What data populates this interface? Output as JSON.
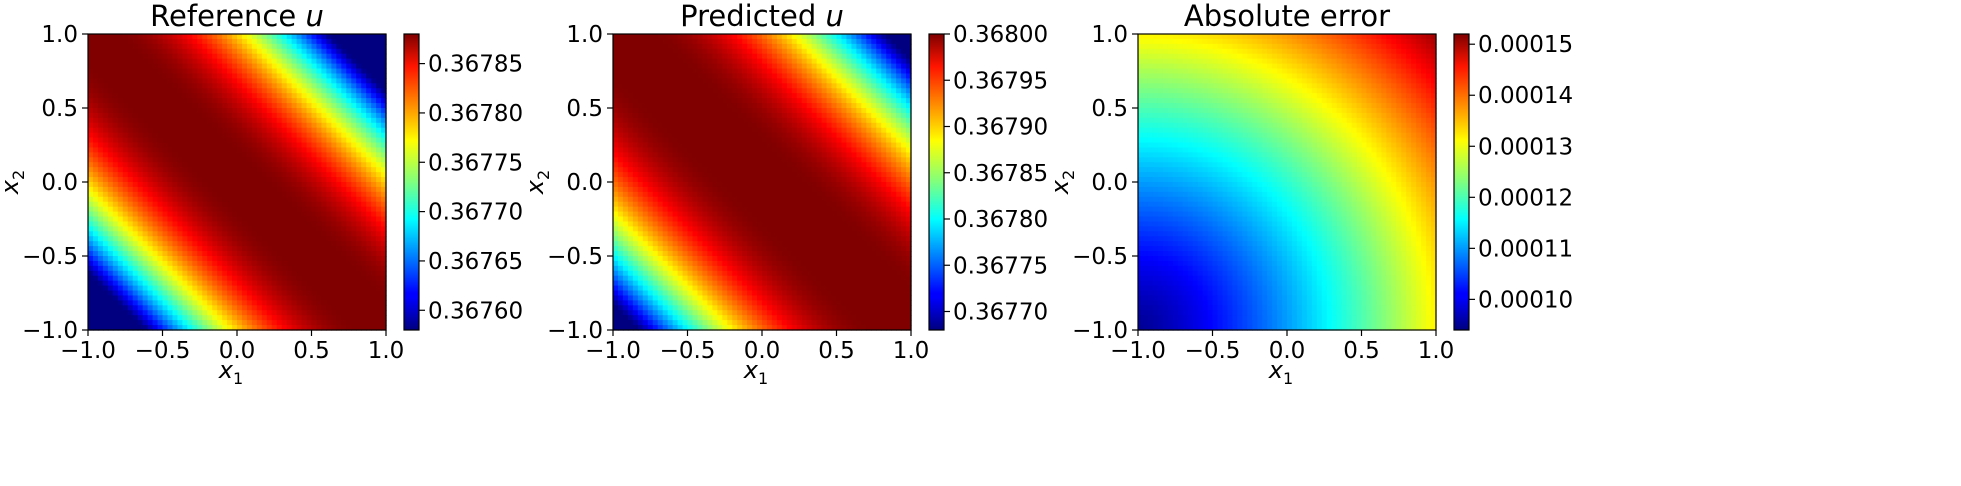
{
  "chart_data": [
    {
      "type": "heatmap",
      "title": "Reference",
      "title_var": "u",
      "xlabel": "x",
      "xlabel_sub": "1",
      "ylabel": "x",
      "ylabel_sub": "2",
      "xlim": [
        -1.0,
        1.0
      ],
      "ylim": [
        -1.0,
        1.0
      ],
      "x_ticks": [
        -1.0,
        -0.5,
        0.0,
        0.5,
        1.0
      ],
      "y_ticks": [
        -1.0,
        -0.5,
        0.0,
        0.5,
        1.0
      ],
      "x_tick_labels": [
        "−1.0",
        "−0.5",
        "0.0",
        "0.5",
        "1.0"
      ],
      "y_tick_labels": [
        "−1.0",
        "−0.5",
        "0.0",
        "0.5",
        "1.0"
      ],
      "colormap": "jet",
      "colorbar": {
        "range": [
          0.36758,
          0.36788
        ],
        "ticks": [
          0.3676,
          0.36765,
          0.3677,
          0.36775,
          0.3678,
          0.36785
        ],
        "tick_labels": [
          "0.36760",
          "0.36765",
          "0.36770",
          "0.36775",
          "0.36780",
          "0.36785"
        ]
      },
      "field": {
        "description": "maximum along the anti-diagonal x1 + x2 = 0, decreasing toward the corners (-1,-1) and (1,1)",
        "peak": 0.36788,
        "samples": [
          {
            "x1": -1.0,
            "x2": 1.0,
            "value": 0.36788
          },
          {
            "x1": 0.0,
            "x2": 0.0,
            "value": 0.36788
          },
          {
            "x1": -1.0,
            "x2": -1.0,
            "value": 0.36762
          },
          {
            "x1": 1.0,
            "x2": 1.0,
            "value": 0.36758
          },
          {
            "x1": 0.6,
            "x2": 0.6,
            "value": 0.36774
          }
        ]
      }
    },
    {
      "type": "heatmap",
      "title": "Predicted",
      "title_var": "u",
      "xlabel": "x",
      "xlabel_sub": "1",
      "ylabel": "x",
      "ylabel_sub": "2",
      "xlim": [
        -1.0,
        1.0
      ],
      "ylim": [
        -1.0,
        1.0
      ],
      "x_ticks": [
        -1.0,
        -0.5,
        0.0,
        0.5,
        1.0
      ],
      "y_ticks": [
        -1.0,
        -0.5,
        0.0,
        0.5,
        1.0
      ],
      "x_tick_labels": [
        "−1.0",
        "−0.5",
        "0.0",
        "0.5",
        "1.0"
      ],
      "y_tick_labels": [
        "−1.0",
        "−0.5",
        "0.0",
        "0.5",
        "1.0"
      ],
      "colormap": "jet",
      "colorbar": {
        "range": [
          0.36768,
          0.368
        ],
        "ticks": [
          0.3677,
          0.36775,
          0.3678,
          0.36785,
          0.3679,
          0.36795,
          0.368
        ],
        "tick_labels": [
          "0.36770",
          "0.36775",
          "0.36780",
          "0.36785",
          "0.36790",
          "0.36795",
          "0.36800"
        ]
      },
      "field": {
        "description": "maximum along the anti-diagonal x1 + x2 = 0, decreasing toward the corners (-1,-1) and (1,1)",
        "peak": 0.368,
        "samples": [
          {
            "x1": 0.0,
            "x2": 0.0,
            "value": 0.368
          },
          {
            "x1": -1.0,
            "x2": -1.0,
            "value": 0.3677
          },
          {
            "x1": 1.0,
            "x2": 1.0,
            "value": 0.36773
          }
        ]
      }
    },
    {
      "type": "heatmap",
      "title": "Absolute error",
      "title_var": "",
      "xlabel": "x",
      "xlabel_sub": "1",
      "ylabel": "x",
      "ylabel_sub": "2",
      "xlim": [
        -1.0,
        1.0
      ],
      "ylim": [
        -1.0,
        1.0
      ],
      "x_ticks": [
        -1.0,
        -0.5,
        0.0,
        0.5,
        1.0
      ],
      "y_ticks": [
        -1.0,
        -0.5,
        0.0,
        0.5,
        1.0
      ],
      "x_tick_labels": [
        "−1.0",
        "−0.5",
        "0.0",
        "0.5",
        "1.0"
      ],
      "y_tick_labels": [
        "−1.0",
        "−0.5",
        "0.0",
        "0.5",
        "1.0"
      ],
      "colormap": "jet",
      "colorbar": {
        "range": [
          9.4e-05,
          0.000152
        ],
        "ticks": [
          0.0001,
          0.00011,
          0.00012,
          0.00013,
          0.00014,
          0.00015
        ],
        "tick_labels": [
          "0.00010",
          "0.00011",
          "0.00012",
          "0.00013",
          "0.00014",
          "0.00015"
        ]
      },
      "field": {
        "description": "increases radially from the corner (-1,-1) toward the corner (1,1)",
        "samples": [
          {
            "x1": -1.0,
            "x2": -1.0,
            "value": 9.4e-05
          },
          {
            "x1": 0.0,
            "x2": 0.0,
            "value": 0.000118
          },
          {
            "x1": 1.0,
            "x2": 1.0,
            "value": 0.000152
          }
        ]
      }
    }
  ]
}
